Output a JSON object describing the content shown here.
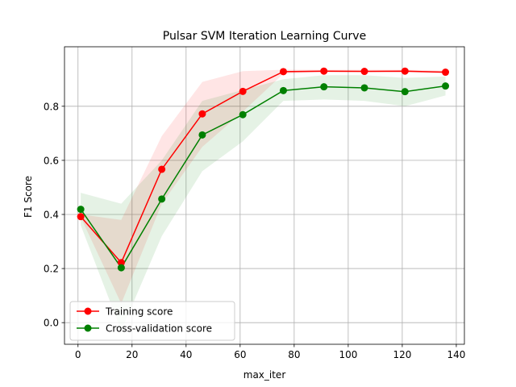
{
  "chart_data": {
    "type": "line",
    "title": "Pulsar SVM Iteration Learning Curve",
    "xlabel": "max_iter",
    "ylabel": "F1 Score",
    "xlim": [
      -5,
      143
    ],
    "ylim": [
      -0.08,
      1.02
    ],
    "xticks": [
      0,
      20,
      40,
      60,
      80,
      100,
      120,
      140
    ],
    "yticks": [
      0.0,
      0.2,
      0.4,
      0.6,
      0.8
    ],
    "ytick_labels": [
      "0.0",
      "0.2",
      "0.4",
      "0.6",
      "0.8"
    ],
    "grid": true,
    "legend_position": "lower-left",
    "x": [
      1,
      16,
      31,
      46,
      61,
      76,
      91,
      106,
      121,
      136
    ],
    "series": [
      {
        "name": "Training score",
        "color": "#ff0000",
        "band_color": "#ff0000",
        "values": [
          0.392,
          0.222,
          0.567,
          0.772,
          0.855,
          0.928,
          0.93,
          0.929,
          0.93,
          0.926
        ],
        "lower": [
          0.39,
          0.07,
          0.44,
          0.65,
          0.78,
          0.92,
          0.925,
          0.925,
          0.925,
          0.92
        ],
        "upper": [
          0.4,
          0.38,
          0.69,
          0.89,
          0.93,
          0.935,
          0.935,
          0.935,
          0.935,
          0.932
        ]
      },
      {
        "name": "Cross-validation score",
        "color": "#008000",
        "band_color": "#008000",
        "values": [
          0.419,
          0.203,
          0.457,
          0.694,
          0.769,
          0.858,
          0.872,
          0.868,
          0.854,
          0.875
        ],
        "lower": [
          0.36,
          -0.03,
          0.32,
          0.56,
          0.67,
          0.82,
          0.825,
          0.82,
          0.8,
          0.84
        ],
        "upper": [
          0.48,
          0.44,
          0.6,
          0.82,
          0.86,
          0.9,
          0.915,
          0.915,
          0.905,
          0.91
        ]
      }
    ]
  }
}
